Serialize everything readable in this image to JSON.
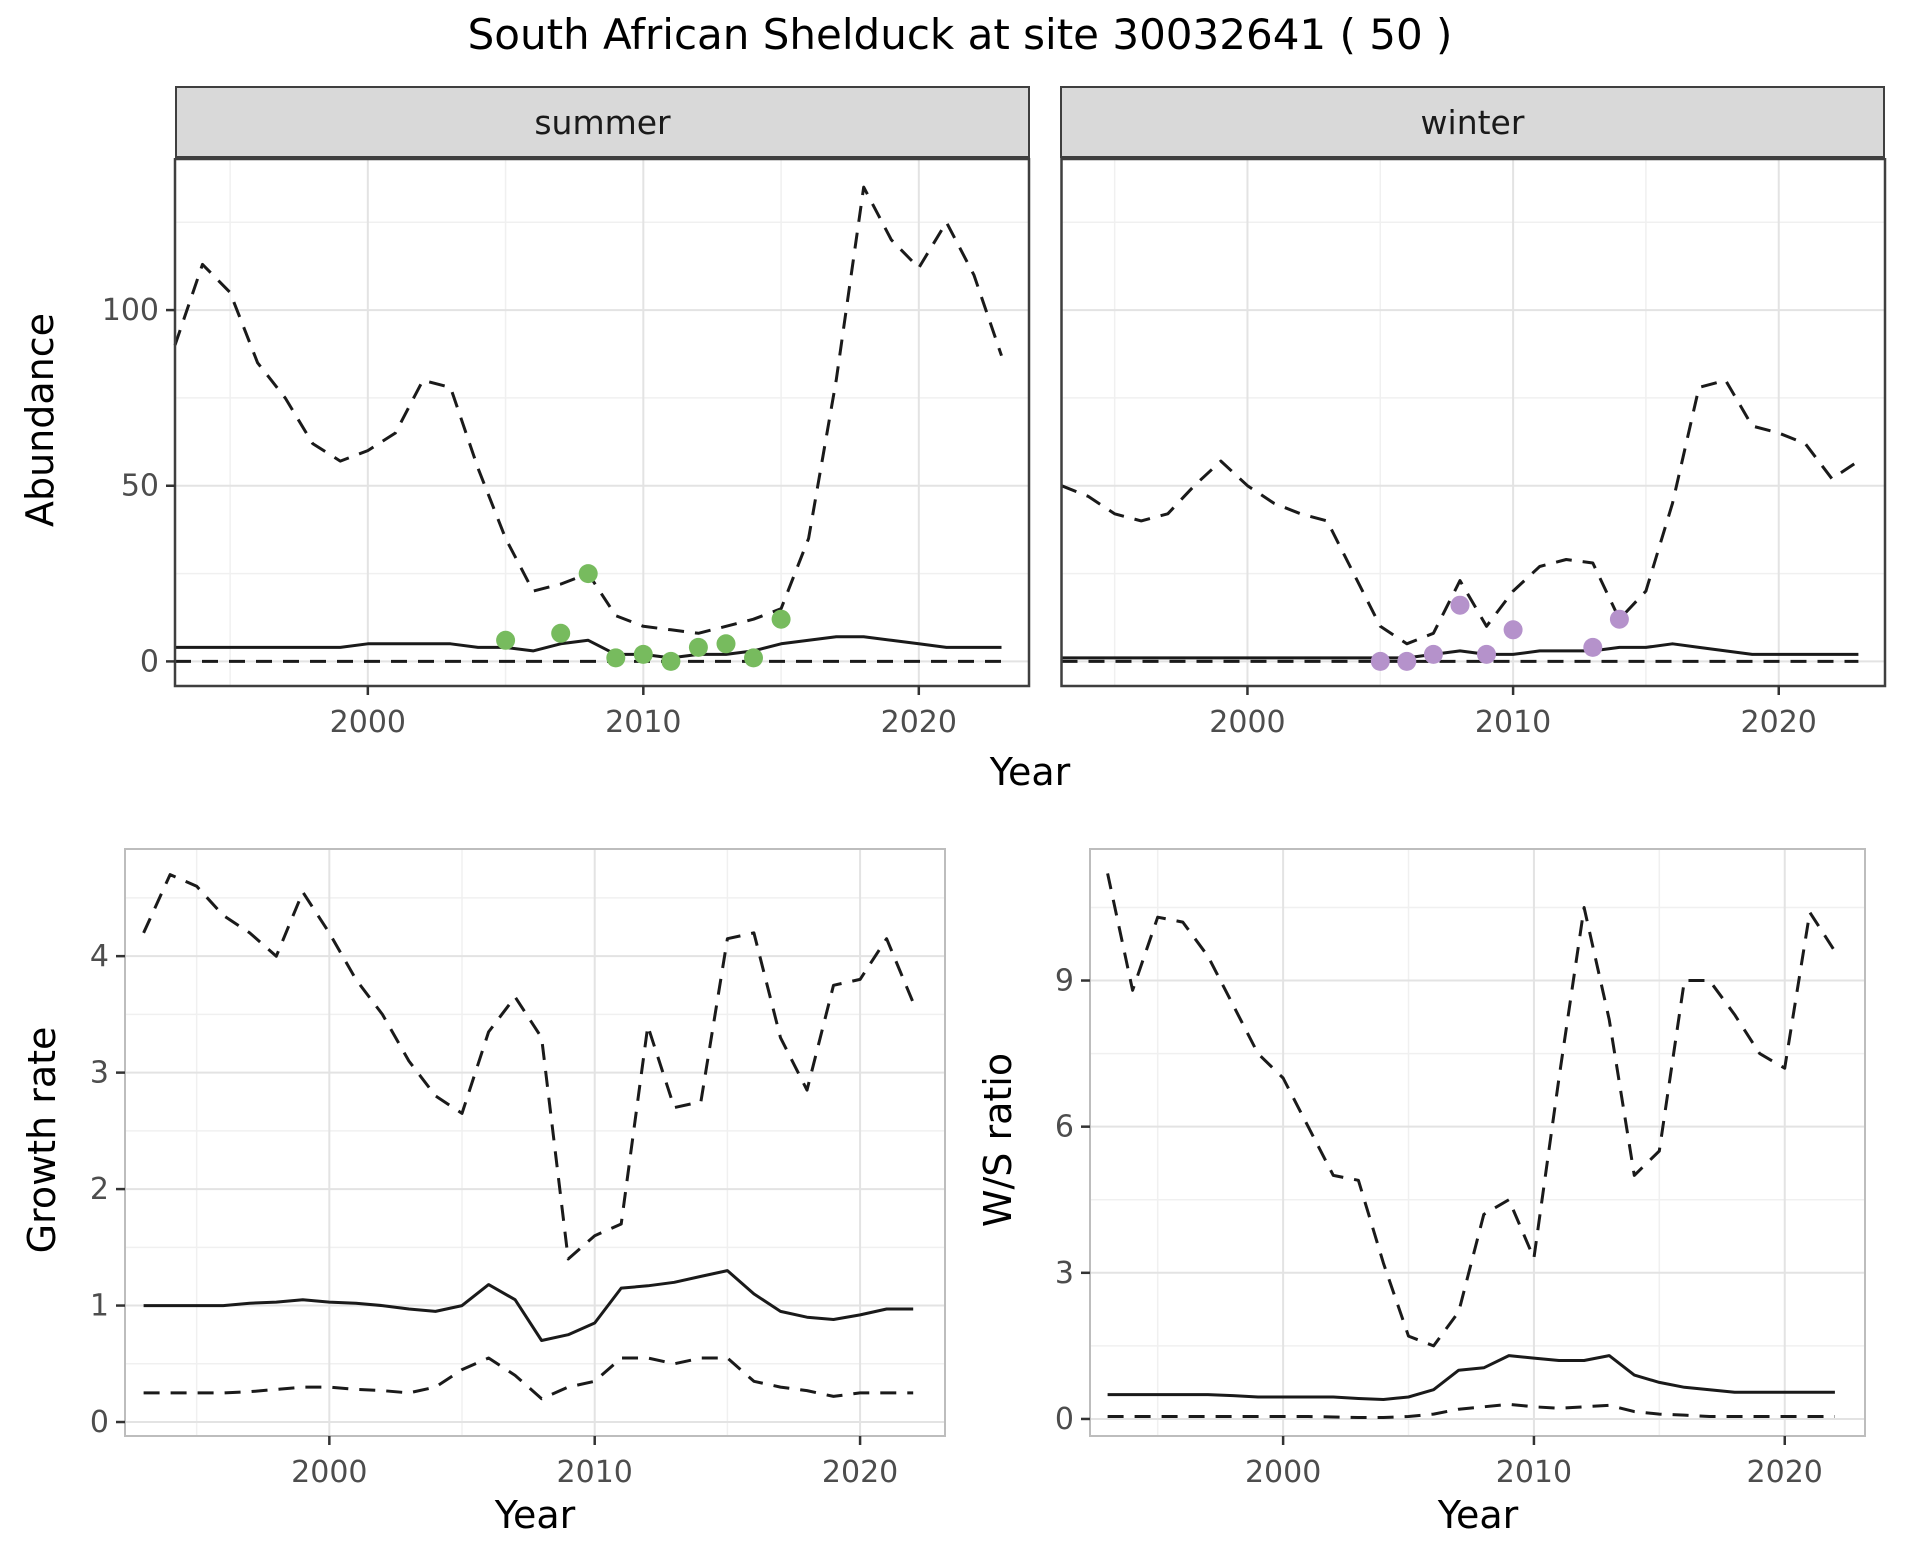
{
  "title": "South African Shelduck at site 30032641 ( 50 )",
  "top_row": {
    "xlabel": "Year",
    "ylabel": "Abundance"
  },
  "colors": {
    "line": "#1a1a1a",
    "grid_major": "#e3e3e3",
    "grid_minor": "#f0f0f0",
    "strip_bg": "#d9d9d9",
    "summer_points": "#77bb5e",
    "winter_points": "#b592cb"
  },
  "chart_data": [
    {
      "type": "line",
      "facet_label": "summer",
      "xlabel": "Year",
      "ylabel": "Abundance",
      "xlim": [
        1993,
        2024
      ],
      "ylim": [
        -7,
        143
      ],
      "xticks": [
        2000,
        2010,
        2020
      ],
      "yticks": [
        0,
        50,
        100
      ],
      "xminor": [
        1995,
        2005,
        2015
      ],
      "yminor": [
        25,
        75,
        125
      ],
      "years": [
        1993,
        1994,
        1995,
        1996,
        1997,
        1998,
        1999,
        2000,
        2001,
        2002,
        2003,
        2004,
        2005,
        2006,
        2007,
        2008,
        2009,
        2010,
        2011,
        2012,
        2013,
        2014,
        2015,
        2016,
        2017,
        2018,
        2019,
        2020,
        2021,
        2022,
        2023
      ],
      "series": [
        {
          "name": "upper_95ci",
          "style": "dashed",
          "values": [
            90,
            113,
            105,
            85,
            75,
            62,
            57,
            60,
            65,
            80,
            78,
            55,
            35,
            20,
            22,
            25,
            13,
            10,
            9,
            8,
            10,
            12,
            15,
            35,
            80,
            135,
            120,
            112,
            125,
            110,
            87
          ]
        },
        {
          "name": "median",
          "style": "solid",
          "values": [
            4,
            4,
            4,
            4,
            4,
            4,
            4,
            5,
            5,
            5,
            5,
            4,
            4,
            3,
            5,
            6,
            2,
            2,
            1,
            2,
            2,
            3,
            5,
            6,
            7,
            7,
            6,
            5,
            4,
            4,
            4
          ]
        },
        {
          "name": "lower_95ci",
          "style": "dashed",
          "values": [
            0,
            0,
            0,
            0,
            0,
            0,
            0,
            0,
            0,
            0,
            0,
            0,
            0,
            0,
            0,
            0,
            0,
            0,
            0,
            0,
            0,
            0,
            0,
            0,
            0,
            0,
            0,
            0,
            0,
            0,
            0
          ]
        }
      ],
      "points": {
        "name": "summer observed counts",
        "color": "#77bb5e",
        "data": [
          [
            2005,
            6
          ],
          [
            2007,
            8
          ],
          [
            2008,
            25
          ],
          [
            2009,
            1
          ],
          [
            2010,
            2
          ],
          [
            2011,
            0
          ],
          [
            2012,
            4
          ],
          [
            2013,
            5
          ],
          [
            2014,
            1
          ],
          [
            2015,
            12
          ]
        ]
      }
    },
    {
      "type": "line",
      "facet_label": "winter",
      "xlabel": "Year",
      "ylabel": "Abundance",
      "xlim": [
        1993,
        2024
      ],
      "ylim": [
        -7,
        143
      ],
      "xticks": [
        2000,
        2010,
        2020
      ],
      "yticks": [
        0,
        50,
        100
      ],
      "xminor": [
        1995,
        2005,
        2015
      ],
      "yminor": [
        25,
        75,
        125
      ],
      "years": [
        1993,
        1994,
        1995,
        1996,
        1997,
        1998,
        1999,
        2000,
        2001,
        2002,
        2003,
        2004,
        2005,
        2006,
        2007,
        2008,
        2009,
        2010,
        2011,
        2012,
        2013,
        2014,
        2015,
        2016,
        2017,
        2018,
        2019,
        2020,
        2021,
        2022,
        2023
      ],
      "series": [
        {
          "name": "upper_95ci",
          "style": "dashed",
          "values": [
            50,
            47,
            42,
            40,
            42,
            50,
            57,
            50,
            45,
            42,
            40,
            25,
            10,
            5,
            8,
            23,
            10,
            20,
            27,
            29,
            28,
            12,
            20,
            45,
            78,
            80,
            67,
            65,
            62,
            52,
            57
          ]
        },
        {
          "name": "median",
          "style": "solid",
          "values": [
            1,
            1,
            1,
            1,
            1,
            1,
            1,
            1,
            1,
            1,
            1,
            1,
            1,
            1,
            2,
            3,
            2,
            2,
            3,
            3,
            3,
            4,
            4,
            5,
            4,
            3,
            2,
            2,
            2,
            2,
            2
          ]
        },
        {
          "name": "lower_95ci",
          "style": "dashed",
          "values": [
            0,
            0,
            0,
            0,
            0,
            0,
            0,
            0,
            0,
            0,
            0,
            0,
            0,
            0,
            0,
            0,
            0,
            0,
            0,
            0,
            0,
            0,
            0,
            0,
            0,
            0,
            0,
            0,
            0,
            0,
            0
          ]
        }
      ],
      "points": {
        "name": "winter observed counts",
        "color": "#b592cb",
        "data": [
          [
            2005,
            0
          ],
          [
            2006,
            0
          ],
          [
            2007,
            2
          ],
          [
            2008,
            16
          ],
          [
            2009,
            2
          ],
          [
            2010,
            9
          ],
          [
            2013,
            4
          ],
          [
            2014,
            12
          ]
        ]
      }
    },
    {
      "type": "line",
      "facet_label": "",
      "xlabel": "Year",
      "ylabel": "Growth rate",
      "xlim": [
        1992.3,
        2023.2
      ],
      "ylim": [
        -0.12,
        4.92
      ],
      "xticks": [
        2000,
        2010,
        2020
      ],
      "yticks": [
        0,
        1,
        2,
        3,
        4
      ],
      "xminor": [
        1995,
        2005,
        2015
      ],
      "yminor": [
        0.5,
        1.5,
        2.5,
        3.5,
        4.5
      ],
      "years": [
        1993,
        1994,
        1995,
        1996,
        1997,
        1998,
        1999,
        2000,
        2001,
        2002,
        2003,
        2004,
        2005,
        2006,
        2007,
        2008,
        2009,
        2010,
        2011,
        2012,
        2013,
        2014,
        2015,
        2016,
        2017,
        2018,
        2019,
        2020,
        2021,
        2022
      ],
      "series": [
        {
          "name": "upper_95ci",
          "style": "dashed",
          "values": [
            4.2,
            4.7,
            4.6,
            4.35,
            4.2,
            4.0,
            4.55,
            4.2,
            3.8,
            3.5,
            3.1,
            2.8,
            2.65,
            3.35,
            3.65,
            3.3,
            1.4,
            1.6,
            1.7,
            3.4,
            2.7,
            2.75,
            4.15,
            4.2,
            3.3,
            2.85,
            3.75,
            3.8,
            4.15,
            3.6
          ]
        },
        {
          "name": "median",
          "style": "solid",
          "values": [
            1.0,
            1.0,
            1.0,
            1.0,
            1.02,
            1.03,
            1.05,
            1.03,
            1.02,
            1.0,
            0.97,
            0.95,
            1.0,
            1.18,
            1.05,
            0.7,
            0.75,
            0.85,
            1.15,
            1.17,
            1.2,
            1.25,
            1.3,
            1.1,
            0.95,
            0.9,
            0.88,
            0.92,
            0.97,
            0.97
          ]
        },
        {
          "name": "lower_95ci",
          "style": "dashed",
          "values": [
            0.25,
            0.25,
            0.25,
            0.25,
            0.26,
            0.28,
            0.3,
            0.3,
            0.28,
            0.27,
            0.25,
            0.3,
            0.45,
            0.55,
            0.4,
            0.2,
            0.3,
            0.35,
            0.55,
            0.55,
            0.5,
            0.55,
            0.55,
            0.35,
            0.3,
            0.27,
            0.22,
            0.25,
            0.25,
            0.25
          ]
        }
      ]
    },
    {
      "type": "line",
      "facet_label": "",
      "xlabel": "Year",
      "ylabel": "W/S ratio",
      "xlim": [
        1992.3,
        2023.2
      ],
      "ylim": [
        -0.35,
        11.7
      ],
      "xticks": [
        2000,
        2010,
        2020
      ],
      "yticks": [
        0,
        3,
        6,
        9
      ],
      "xminor": [
        1995,
        2005,
        2015
      ],
      "yminor": [
        1.5,
        4.5,
        7.5,
        10.5
      ],
      "years": [
        1993,
        1994,
        1995,
        1996,
        1997,
        1998,
        1999,
        2000,
        2001,
        2002,
        2003,
        2004,
        2005,
        2006,
        2007,
        2008,
        2009,
        2010,
        2011,
        2012,
        2013,
        2014,
        2015,
        2016,
        2017,
        2018,
        2019,
        2020,
        2021,
        2022
      ],
      "series": [
        {
          "name": "upper_95ci",
          "style": "dashed",
          "values": [
            11.2,
            8.8,
            10.3,
            10.2,
            9.5,
            8.5,
            7.5,
            7.0,
            6.0,
            5.0,
            4.9,
            3.2,
            1.7,
            1.5,
            2.2,
            4.2,
            4.5,
            3.3,
            7.0,
            10.5,
            8.2,
            5.0,
            5.5,
            9.0,
            9.0,
            8.3,
            7.5,
            7.2,
            10.4,
            9.6
          ]
        },
        {
          "name": "median",
          "style": "solid",
          "values": [
            0.5,
            0.5,
            0.5,
            0.5,
            0.5,
            0.48,
            0.45,
            0.45,
            0.45,
            0.45,
            0.42,
            0.4,
            0.45,
            0.6,
            1.0,
            1.05,
            1.3,
            1.25,
            1.2,
            1.2,
            1.3,
            0.9,
            0.75,
            0.65,
            0.6,
            0.55,
            0.55,
            0.55,
            0.55,
            0.55
          ]
        },
        {
          "name": "lower_95ci",
          "style": "dashed",
          "values": [
            0.05,
            0.05,
            0.05,
            0.05,
            0.05,
            0.05,
            0.05,
            0.05,
            0.05,
            0.04,
            0.03,
            0.03,
            0.05,
            0.1,
            0.2,
            0.25,
            0.3,
            0.25,
            0.22,
            0.25,
            0.28,
            0.15,
            0.1,
            0.08,
            0.05,
            0.05,
            0.05,
            0.05,
            0.05,
            0.05
          ]
        }
      ]
    }
  ]
}
